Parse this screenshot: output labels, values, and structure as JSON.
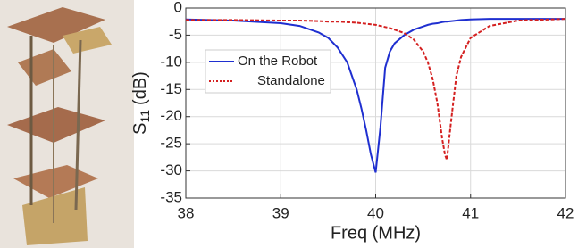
{
  "chart_data": {
    "type": "line",
    "xlabel": "Freq (MHz)",
    "ylabel": {
      "symbol": "S",
      "subscript": "11",
      "unit": "(dB)"
    },
    "x": [
      38,
      38.5,
      39,
      39.2,
      39.4,
      39.5,
      39.6,
      39.7,
      39.8,
      39.85,
      39.9,
      39.95,
      40,
      40.05,
      40.1,
      40.15,
      40.2,
      40.3,
      40.4,
      40.5,
      40.55,
      40.6,
      40.65,
      40.7,
      40.73,
      40.75,
      40.8,
      40.85,
      40.9,
      41,
      41.2,
      41.5,
      42
    ],
    "series": [
      {
        "name": "On the Robot",
        "color": "#1f2fd0",
        "linestyle": "solid",
        "values": [
          -2.1,
          -2.3,
          -2.8,
          -3.3,
          -4.5,
          -5.5,
          -7.3,
          -10,
          -15,
          -18.5,
          -22.5,
          -27,
          -30.3,
          -22,
          -11,
          -8,
          -6.5,
          -5,
          -4,
          -3.4,
          -3.1,
          -2.9,
          -2.8,
          -2.6,
          -2.5,
          -2.5,
          -2.4,
          -2.3,
          -2.2,
          -2.1,
          -2,
          -2,
          -2
        ]
      },
      {
        "name": "Standalone",
        "color": "#d42020",
        "linestyle": "dashed",
        "values": [
          -2.2,
          -2.2,
          -2.3,
          -2.3,
          -2.4,
          -2.5,
          -2.5,
          -2.6,
          -2.7,
          -2.8,
          -2.9,
          -3,
          -3.1,
          -3.3,
          -3.5,
          -3.7,
          -4,
          -4.6,
          -5.8,
          -8,
          -10,
          -13,
          -17.5,
          -24,
          -27,
          -28,
          -20,
          -12.5,
          -9,
          -5.5,
          -3.3,
          -2.3,
          -2
        ]
      }
    ],
    "xlim": [
      38,
      42
    ],
    "xticks": [
      38,
      39,
      40,
      41,
      42
    ],
    "ylim": [
      -35,
      0
    ],
    "yticks": [
      -35,
      -30,
      -25,
      -20,
      -15,
      -10,
      -5,
      0
    ],
    "grid": true,
    "legend": "upper left"
  }
}
